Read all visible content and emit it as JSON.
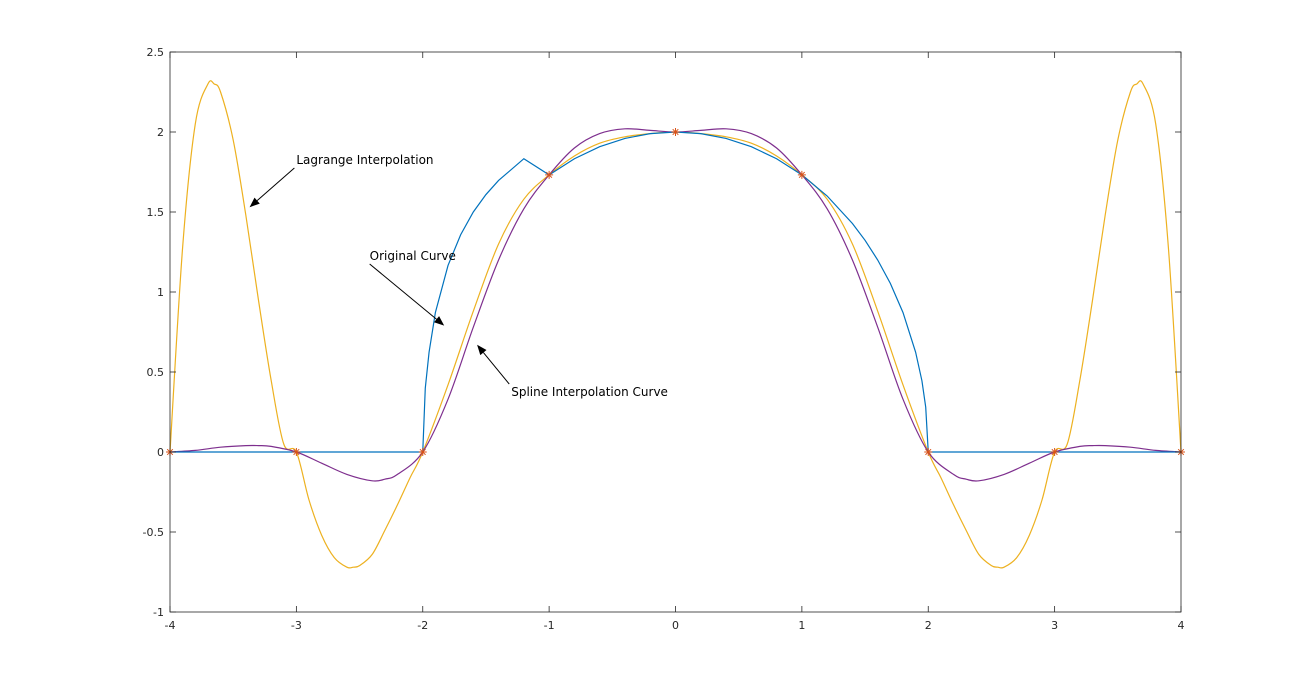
{
  "chart_data": {
    "type": "line",
    "title": "",
    "xlabel": "",
    "ylabel": "",
    "xlim": [
      -4,
      4
    ],
    "ylim": [
      -1,
      2.5
    ],
    "xticks": [
      -4,
      -3,
      -2,
      -1,
      0,
      1,
      2,
      3,
      4
    ],
    "xtick_labels": [
      "-4",
      "-3",
      "-2",
      "-1",
      "0",
      "1",
      "2",
      "3",
      "4"
    ],
    "yticks": [
      -1,
      -0.5,
      0,
      0.5,
      1,
      1.5,
      2,
      2.5
    ],
    "ytick_labels": [
      "-1",
      "-0.5",
      "0",
      "0.5",
      "1",
      "1.5",
      "2",
      "2.5"
    ],
    "grid": false,
    "box": true,
    "series": [
      {
        "role": "original",
        "color": "#0072BD",
        "x": [
          -4,
          -3,
          -2.0,
          -1.98,
          -1.95,
          -1.9,
          -1.8,
          -1.7,
          -1.6,
          -1.5,
          -1.4,
          -1.2,
          -1.0,
          -0.8,
          -0.6,
          -0.4,
          -0.2,
          0,
          0.2,
          0.4,
          0.6,
          0.8,
          1.0,
          1.2,
          1.4,
          1.5,
          1.6,
          1.7,
          1.8,
          1.9,
          1.95,
          1.98,
          2.0,
          3,
          4
        ],
        "y": [
          0,
          0,
          0,
          0.399,
          0.624,
          0.872,
          1.166,
          1.358,
          1.5,
          1.609,
          1.697,
          1.833,
          1.732,
          1.833,
          1.908,
          1.96,
          1.99,
          2.0,
          1.99,
          1.96,
          1.908,
          1.833,
          1.732,
          1.6,
          1.428,
          1.323,
          1.2,
          1.054,
          0.872,
          0.624,
          0.445,
          0.28,
          0,
          0,
          0
        ]
      },
      {
        "role": "lagrange",
        "color": "#EDB120",
        "x": [
          -4.0,
          -3.9,
          -3.8,
          -3.7,
          -3.65,
          -3.6,
          -3.5,
          -3.4,
          -3.3,
          -3.2,
          -3.1,
          -3.0,
          -2.9,
          -2.8,
          -2.7,
          -2.6,
          -2.55,
          -2.5,
          -2.4,
          -2.3,
          -2.2,
          -2.1,
          -2.0,
          -1.8,
          -1.6,
          -1.4,
          -1.2,
          -1.0,
          -0.8,
          -0.6,
          -0.4,
          -0.2,
          0.0,
          0.2,
          0.4,
          0.6,
          0.8,
          1.0,
          1.2,
          1.4,
          1.6,
          1.8,
          2.0,
          2.1,
          2.2,
          2.3,
          2.4,
          2.5,
          2.55,
          2.6,
          2.7,
          2.8,
          2.9,
          3.0,
          3.1,
          3.2,
          3.3,
          3.4,
          3.5,
          3.6,
          3.65,
          3.7,
          3.8,
          3.9,
          4.0
        ],
        "y": [
          0.0,
          1.28,
          2.05,
          2.3,
          2.3,
          2.25,
          1.95,
          1.48,
          0.95,
          0.45,
          0.05,
          0.0,
          -0.3,
          -0.52,
          -0.66,
          -0.72,
          -0.72,
          -0.71,
          -0.64,
          -0.49,
          -0.33,
          -0.16,
          0.0,
          0.42,
          0.88,
          1.3,
          1.58,
          1.732,
          1.85,
          1.93,
          1.97,
          1.99,
          2.0,
          1.99,
          1.97,
          1.93,
          1.85,
          1.732,
          1.58,
          1.3,
          0.88,
          0.42,
          0.0,
          -0.16,
          -0.33,
          -0.49,
          -0.64,
          -0.71,
          -0.72,
          -0.72,
          -0.66,
          -0.52,
          -0.3,
          0.0,
          0.05,
          0.45,
          0.95,
          1.48,
          1.95,
          2.25,
          2.3,
          2.3,
          2.05,
          1.28,
          0.0
        ]
      },
      {
        "role": "spline",
        "color": "#7E2F8E",
        "x": [
          -4.0,
          -3.8,
          -3.6,
          -3.4,
          -3.3,
          -3.2,
          -3.0,
          -2.8,
          -2.6,
          -2.4,
          -2.3,
          -2.2,
          -2.0,
          -1.8,
          -1.6,
          -1.4,
          -1.2,
          -1.0,
          -0.8,
          -0.6,
          -0.4,
          -0.2,
          0.0,
          0.2,
          0.4,
          0.6,
          0.8,
          1.0,
          1.2,
          1.4,
          1.6,
          1.8,
          2.0,
          2.2,
          2.3,
          2.4,
          2.6,
          2.8,
          3.0,
          3.2,
          3.3,
          3.4,
          3.6,
          3.8,
          4.0
        ],
        "y": [
          0.0,
          0.01,
          0.03,
          0.04,
          0.04,
          0.035,
          0.0,
          -0.07,
          -0.14,
          -0.18,
          -0.17,
          -0.14,
          0.0,
          0.33,
          0.78,
          1.2,
          1.52,
          1.732,
          1.9,
          1.99,
          2.02,
          2.01,
          2.0,
          2.01,
          2.02,
          1.99,
          1.9,
          1.732,
          1.52,
          1.2,
          0.78,
          0.33,
          0.0,
          -0.14,
          -0.17,
          -0.18,
          -0.14,
          -0.07,
          0.0,
          0.035,
          0.04,
          0.04,
          0.03,
          0.01,
          0.0
        ]
      }
    ],
    "markers": {
      "symbol": "*",
      "color": "#D95319",
      "x": [
        -4,
        -3,
        -2,
        -1,
        0,
        1,
        2,
        3,
        4
      ],
      "y": [
        0,
        0,
        0,
        1.732,
        2,
        1.732,
        0,
        0,
        0
      ]
    },
    "annotations": [
      {
        "text": "Lagrange Interpolation",
        "text_at": [
          -3.0,
          1.8
        ],
        "arrow_to": [
          -3.37,
          1.53
        ]
      },
      {
        "text": "Original Curve",
        "text_at": [
          -2.42,
          1.2
        ],
        "arrow_to": [
          -1.83,
          0.79
        ]
      },
      {
        "text": "Spline Interpolation Curve",
        "text_at": [
          -1.3,
          0.35
        ],
        "arrow_to": [
          -1.57,
          0.67
        ]
      }
    ]
  }
}
